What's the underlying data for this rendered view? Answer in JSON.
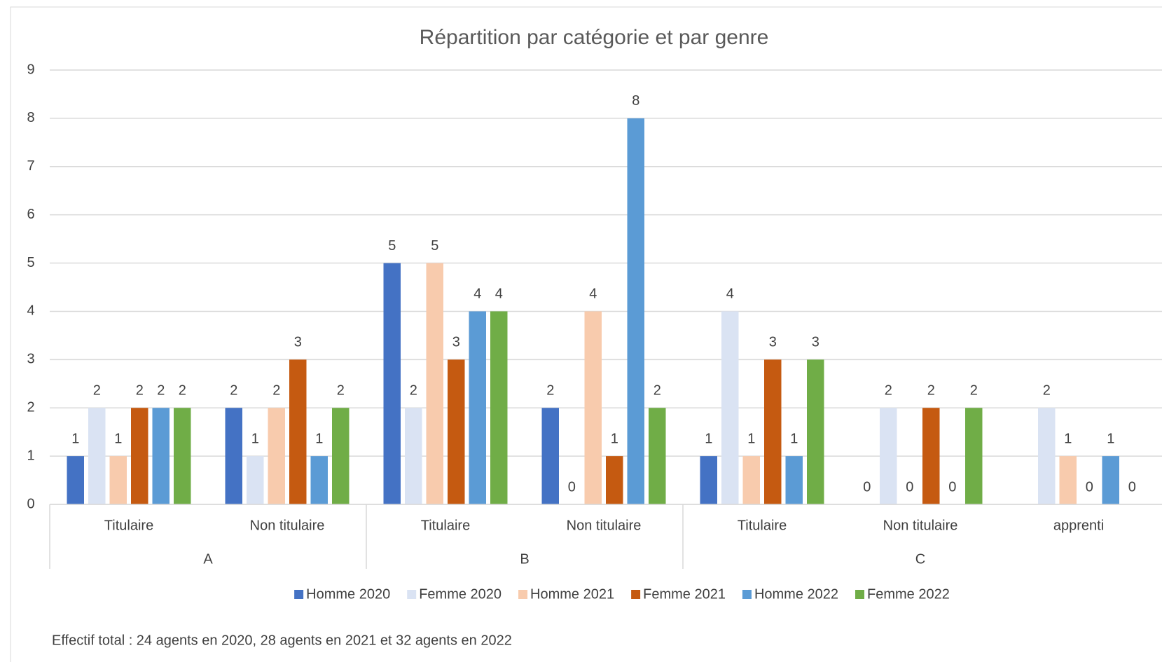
{
  "chart_data": {
    "type": "bar",
    "title": "Répartition par catégorie et par genre",
    "groups": [
      {
        "name": "A",
        "categories": [
          "Titulaire",
          "Non titulaire"
        ]
      },
      {
        "name": "B",
        "categories": [
          "Titulaire",
          "Non titulaire"
        ]
      },
      {
        "name": "C",
        "categories": [
          "Titulaire",
          "Non titulaire",
          "apprenti"
        ]
      }
    ],
    "series": [
      {
        "name": "Homme 2020",
        "color": "#4472c4",
        "values": [
          1,
          2,
          5,
          2,
          1,
          0,
          null
        ]
      },
      {
        "name": "Femme 2020",
        "color": "#dae3f3",
        "values": [
          2,
          1,
          2,
          0,
          4,
          2,
          2
        ]
      },
      {
        "name": "Homme 2021",
        "color": "#f8cbad",
        "values": [
          1,
          2,
          5,
          4,
          1,
          0,
          1
        ]
      },
      {
        "name": "Femme 2021",
        "color": "#c55a11",
        "values": [
          2,
          3,
          3,
          1,
          3,
          2,
          0
        ]
      },
      {
        "name": "Homme 2022",
        "color": "#5b9bd5",
        "values": [
          2,
          1,
          4,
          8,
          1,
          0,
          1
        ]
      },
      {
        "name": "Femme 2022",
        "color": "#70ad47",
        "values": [
          2,
          2,
          4,
          2,
          3,
          2,
          0
        ]
      }
    ],
    "ylim": [
      0,
      9
    ],
    "yticks": [
      0,
      1,
      2,
      3,
      4,
      5,
      6,
      7,
      8,
      9
    ],
    "grid": true,
    "legend": "bottom",
    "footnote": "Effectif total : 24 agents en 2020, 28 agents en 2021 et 32 agents en 2022"
  }
}
